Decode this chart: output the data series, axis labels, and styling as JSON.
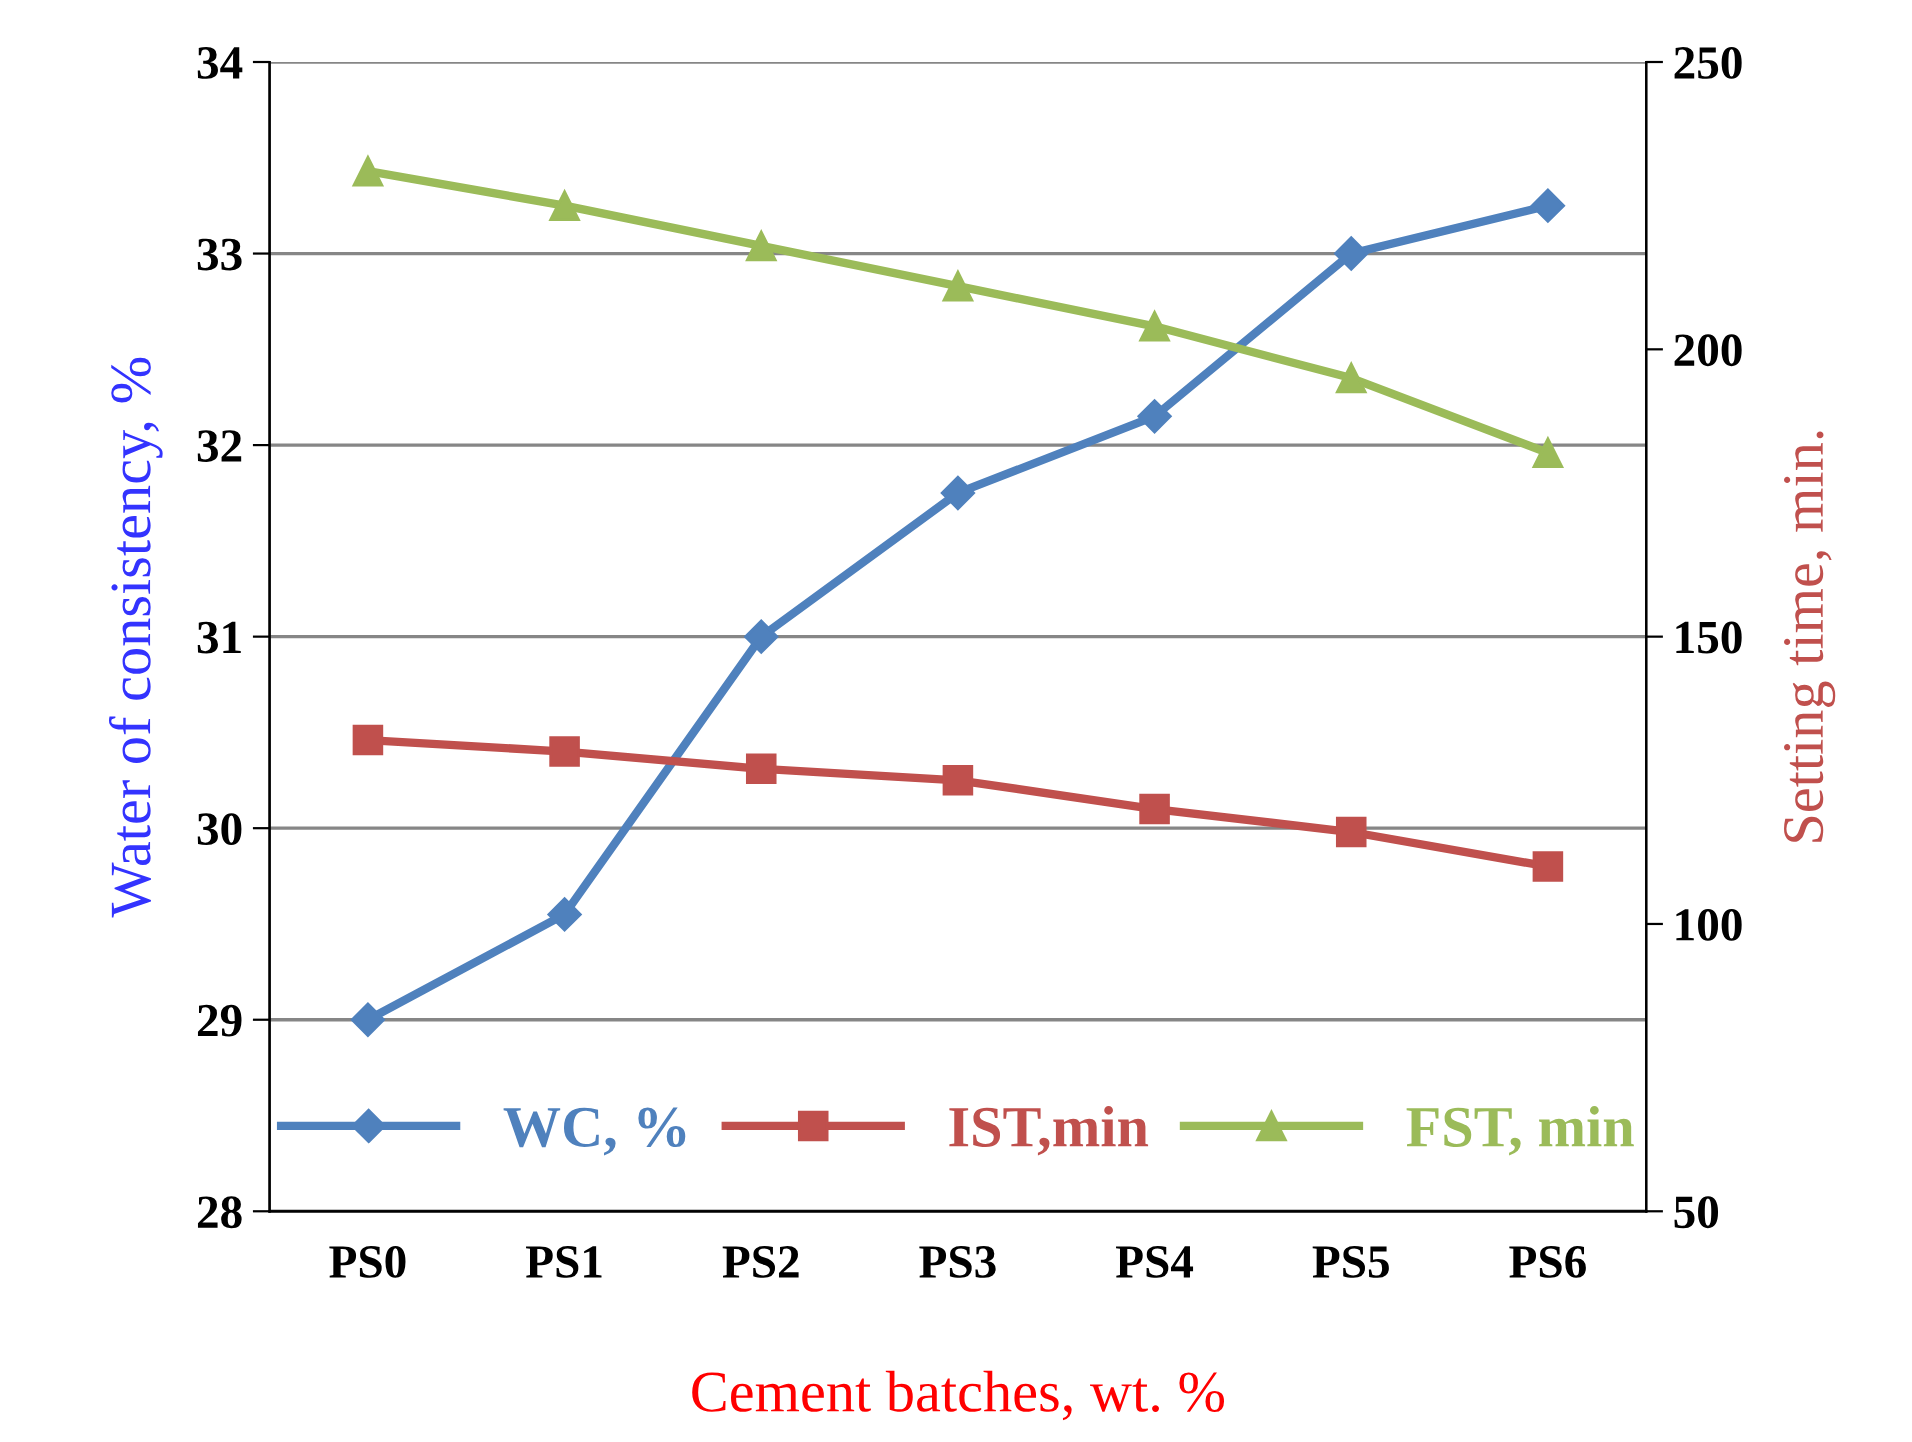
{
  "chart_data": {
    "type": "line",
    "xlabel": "Cement batches, wt. %",
    "ylabel": "Water of consistency, %",
    "y2label": "Setting time, min.",
    "categories": [
      "PS0",
      "PS1",
      "PS2",
      "PS3",
      "PS4",
      "PS5",
      "PS6"
    ],
    "series": [
      {
        "name": "WC, %",
        "color": "#4f81bd",
        "marker": "diamond",
        "values": [
          29.0,
          29.55,
          31.0,
          31.75,
          32.15,
          33.0,
          33.25
        ]
      },
      {
        "name": "IST,min",
        "color": "#c0504d",
        "marker": "square",
        "axis": "y2",
        "values": [
          132,
          130,
          127,
          125,
          120,
          116,
          110
        ]
      },
      {
        "name": "FST, min",
        "color": "#9bbb59",
        "marker": "triangle",
        "axis": "y2",
        "values": [
          231,
          225,
          218,
          211,
          204,
          195,
          182
        ]
      }
    ],
    "ylim": [
      28,
      34
    ],
    "yticks": [
      28,
      29,
      30,
      31,
      32,
      33,
      34
    ],
    "y2lim": [
      50,
      250
    ],
    "y2ticks": [
      50,
      100,
      150,
      200,
      250
    ],
    "grid": "y",
    "legend": "bottom"
  }
}
